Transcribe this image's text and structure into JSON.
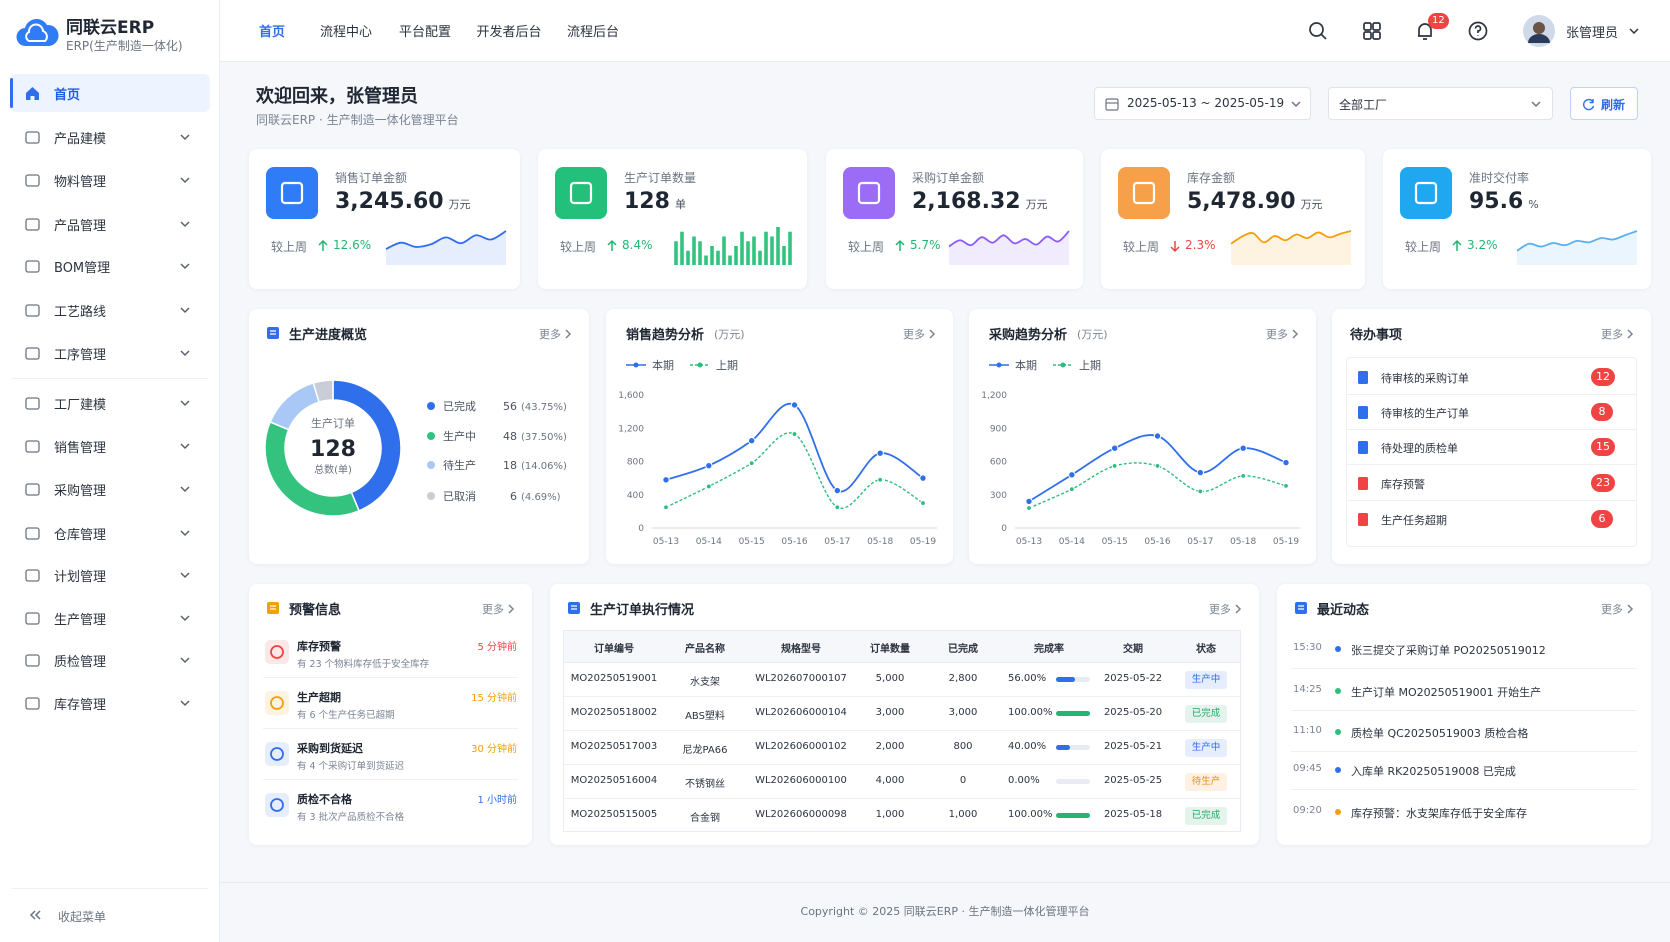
{
  "brand": {
    "name": "同联云ERP",
    "tagline": "ERP(生产制造一体化)"
  },
  "sidebar": {
    "items": [
      "首页",
      "产品建模",
      "物料管理",
      "产品管理",
      "BOM管理",
      "工艺路线",
      "工序管理",
      "工厂建模",
      "销售管理",
      "采购管理",
      "仓库管理",
      "计划管理",
      "生产管理",
      "质检管理",
      "库存管理"
    ],
    "collapse": "收起菜单"
  },
  "topnav": {
    "items": [
      "首页",
      "流程中心",
      "平台配置",
      "开发者后台",
      "流程后台"
    ],
    "notifications": 12,
    "user": "张管理员"
  },
  "header": {
    "title": "欢迎回来，张管理员",
    "subtitle": "同联云ERP · 生产制造一体化管理平台",
    "date_range": "2025-05-13 ~ 2025-05-19",
    "factory": "全部工厂",
    "refresh": "刷新"
  },
  "kpis": [
    {
      "label": "销售订单金额",
      "value": "3,245.60",
      "unit": "万元",
      "compare": "较上周",
      "change": "12.6%",
      "direction": "up",
      "spark_type": "area",
      "color": "#2f6fec",
      "spark": [
        3,
        4.2,
        3.4,
        3.9,
        5.2,
        4.1,
        5.6,
        4.8,
        6.4
      ]
    },
    {
      "label": "生产订单数量",
      "value": "128",
      "unit": "单",
      "compare": "较上周",
      "change": "8.4%",
      "direction": "up",
      "spark_type": "bar",
      "color": "#34c27f",
      "spark": [
        5,
        7,
        3,
        6,
        5,
        2,
        4,
        3,
        6,
        2,
        4,
        7,
        5,
        6,
        3,
        7,
        6,
        8,
        4,
        7
      ]
    },
    {
      "label": "采购订单金额",
      "value": "2,168.32",
      "unit": "万元",
      "compare": "较上周",
      "change": "5.7%",
      "direction": "up",
      "spark_type": "area",
      "color": "#8b5cf6",
      "spark": [
        3,
        4,
        3.2,
        4.5,
        3.6,
        4.8,
        3.5,
        4.2,
        3.3,
        4.6,
        3.8,
        5.5
      ]
    },
    {
      "label": "库存金额",
      "value": "5,478.90",
      "unit": "万元",
      "compare": "较上周",
      "change": "2.3%",
      "direction": "down",
      "spark_type": "area",
      "color": "#f59e0b",
      "spark": [
        3,
        4,
        4.5,
        3.2,
        4.1,
        3.5,
        4.3,
        3.8,
        4.6,
        3.9,
        4.4,
        4.8
      ]
    },
    {
      "label": "准时交付率",
      "value": "95.6",
      "unit": "%",
      "compare": "较上周",
      "change": "3.2%",
      "direction": "up",
      "spark_type": "area",
      "color": "#5ab0f0",
      "spark": [
        2,
        3,
        2.6,
        3.1,
        2.8,
        3.4,
        3.2,
        3.8,
        3.6,
        4.2,
        4.8
      ]
    }
  ],
  "chart_data": [
    {
      "type": "pie",
      "title": "生产进度概览",
      "more": "更多",
      "center_label": "生产订单",
      "total": 128,
      "total_label": "总数(单)",
      "items": [
        {
          "name": "已完成",
          "value": 56,
          "pct": "(43.75%)",
          "color": "#2f6fec"
        },
        {
          "name": "生产中",
          "value": 48,
          "pct": "(37.50%)",
          "color": "#34c27f"
        },
        {
          "name": "待生产",
          "value": 18,
          "pct": "(14.06%)",
          "color": "#a9c8f5"
        },
        {
          "name": "已取消",
          "value": 6,
          "pct": "(4.69%)",
          "color": "#c9ced6"
        }
      ]
    },
    {
      "type": "line",
      "title": "销售趋势分析",
      "unit": "(万元)",
      "more": "更多",
      "categories": [
        "05-13",
        "05-14",
        "05-15",
        "05-16",
        "05-17",
        "05-18",
        "05-19"
      ],
      "series": [
        {
          "name": "本期",
          "color": "#2f6fec",
          "line_style": "solid",
          "values": [
            580,
            750,
            1050,
            1480,
            450,
            900,
            600
          ]
        },
        {
          "name": "上期",
          "color": "#2dbd7e",
          "line_style": "dashed",
          "values": [
            250,
            500,
            780,
            1130,
            250,
            580,
            300
          ]
        }
      ],
      "ylim": [
        0,
        1600
      ],
      "yticks": [
        0,
        400,
        800,
        {
          "value": 1200,
          "label": "1,200"
        },
        {
          "value": 1600,
          "label": "1,600"
        }
      ],
      "grid": false
    },
    {
      "type": "line",
      "title": "采购趋势分析",
      "unit": "(万元)",
      "more": "更多",
      "categories": [
        "05-13",
        "05-14",
        "05-15",
        "05-16",
        "05-17",
        "05-18",
        "05-19"
      ],
      "series": [
        {
          "name": "本期",
          "color": "#2f6fec",
          "line_style": "solid",
          "values": [
            240,
            480,
            720,
            830,
            500,
            720,
            590
          ]
        },
        {
          "name": "上期",
          "color": "#2dbd7e",
          "line_style": "dashed",
          "values": [
            180,
            350,
            560,
            560,
            330,
            470,
            380
          ]
        }
      ],
      "ylim": [
        0,
        1200
      ],
      "yticks": [
        0,
        300,
        600,
        900,
        {
          "value": 1200,
          "label": "1,200"
        }
      ],
      "grid": false
    }
  ],
  "todos": {
    "title": "待办事项",
    "more": "更多",
    "items": [
      {
        "text": "待审核的采购订单",
        "count": 12,
        "icon_color": "#2f6fec"
      },
      {
        "text": "待审核的生产订单",
        "count": 8,
        "icon_color": "#2f6fec"
      },
      {
        "text": "待处理的质检单",
        "count": 15,
        "icon_color": "#2f6fec"
      },
      {
        "text": "库存预警",
        "count": 23,
        "icon_color": "#f04444"
      },
      {
        "text": "生产任务超期",
        "count": 6,
        "icon_color": "#f04444"
      }
    ]
  },
  "alerts": {
    "title": "预警信息",
    "more": "更多",
    "items": [
      {
        "title": "库存预警",
        "desc": "有 23 个物料库存低于安全库存",
        "time": "5 分钟前",
        "icon_color": "#f04444",
        "time_color": "#f04444"
      },
      {
        "title": "生产超期",
        "desc": "有 6 个生产任务已超期",
        "time": "15 分钟前",
        "icon_color": "#f59e0b",
        "time_color": "#f59e0b"
      },
      {
        "title": "采购到货延迟",
        "desc": "有 4 个采购订单到货延迟",
        "time": "30 分钟前",
        "icon_color": "#2f6fec",
        "time_color": "#f59e0b"
      },
      {
        "title": "质检不合格",
        "desc": "有 3 批次产品质检不合格",
        "time": "1 小时前",
        "icon_color": "#2f6fec",
        "time_color": "#2f6fec"
      }
    ]
  },
  "orders": {
    "title": "生产订单执行情况",
    "more": "更多",
    "columns": [
      "订单编号",
      "产品名称",
      "规格型号",
      "订单数量",
      "已完成",
      "完成率",
      "交期",
      "状态"
    ],
    "rows": [
      {
        "order": "MO20250519001",
        "product": "水支架",
        "spec": "WL202607000107",
        "qty": "5,000",
        "done": "2,800",
        "rate": {
          "value": 56,
          "label": "56.00%"
        },
        "date": "2025-05-22",
        "status": "生产中",
        "status_color": "#2f6fec",
        "bar_color": "#2f6fec"
      },
      {
        "order": "MO20250518002",
        "product": "ABS塑料",
        "spec": "WL202606000104",
        "qty": "3,000",
        "done": "3,000",
        "rate": {
          "value": 100,
          "label": "100.00%"
        },
        "date": "2025-05-20",
        "status": "已完成",
        "status_color": "#22a867",
        "bar_color": "#22b573"
      },
      {
        "order": "MO20250517003",
        "product": "尼龙PA66",
        "spec": "WL202606000102",
        "qty": "2,000",
        "done": "800",
        "rate": {
          "value": 40,
          "label": "40.00%"
        },
        "date": "2025-05-21",
        "status": "生产中",
        "status_color": "#2f6fec",
        "bar_color": "#2f6fec"
      },
      {
        "order": "MO20250516004",
        "product": "不锈钢丝",
        "spec": "WL202606000100",
        "qty": "4,000",
        "done": "0",
        "rate": {
          "value": 0,
          "label": "0.00%"
        },
        "date": "2025-05-25",
        "status": "待生产",
        "status_color": "#f08c1a",
        "bar_color": "#2f6fec"
      },
      {
        "order": "MO20250515005",
        "product": "合金钢",
        "spec": "WL202606000098",
        "qty": "1,000",
        "done": "1,000",
        "rate": {
          "value": 100,
          "label": "100.00%"
        },
        "date": "2025-05-18",
        "status": "已完成",
        "status_color": "#22a867",
        "bar_color": "#22b573"
      }
    ]
  },
  "activity": {
    "title": "最近动态",
    "more": "更多",
    "items": [
      {
        "time": "15:30",
        "text": "张三提交了采购订单 PO20250519012",
        "color": "#2f6fec"
      },
      {
        "time": "14:25",
        "text": "生产订单 MO20250519001 开始生产",
        "color": "#2dbd7e"
      },
      {
        "time": "11:10",
        "text": "质检单 QC20250519003 质检合格",
        "color": "#2dbd7e"
      },
      {
        "time": "09:45",
        "text": "入库单 RK20250519008 已完成",
        "color": "#2f6fec"
      },
      {
        "time": "09:20",
        "text": "库存预警：水支架库存低于安全库存",
        "color": "#f59e0b"
      }
    ]
  },
  "footer": "Copyright © 2025   同联云ERP · 生产制造一体化管理平台"
}
